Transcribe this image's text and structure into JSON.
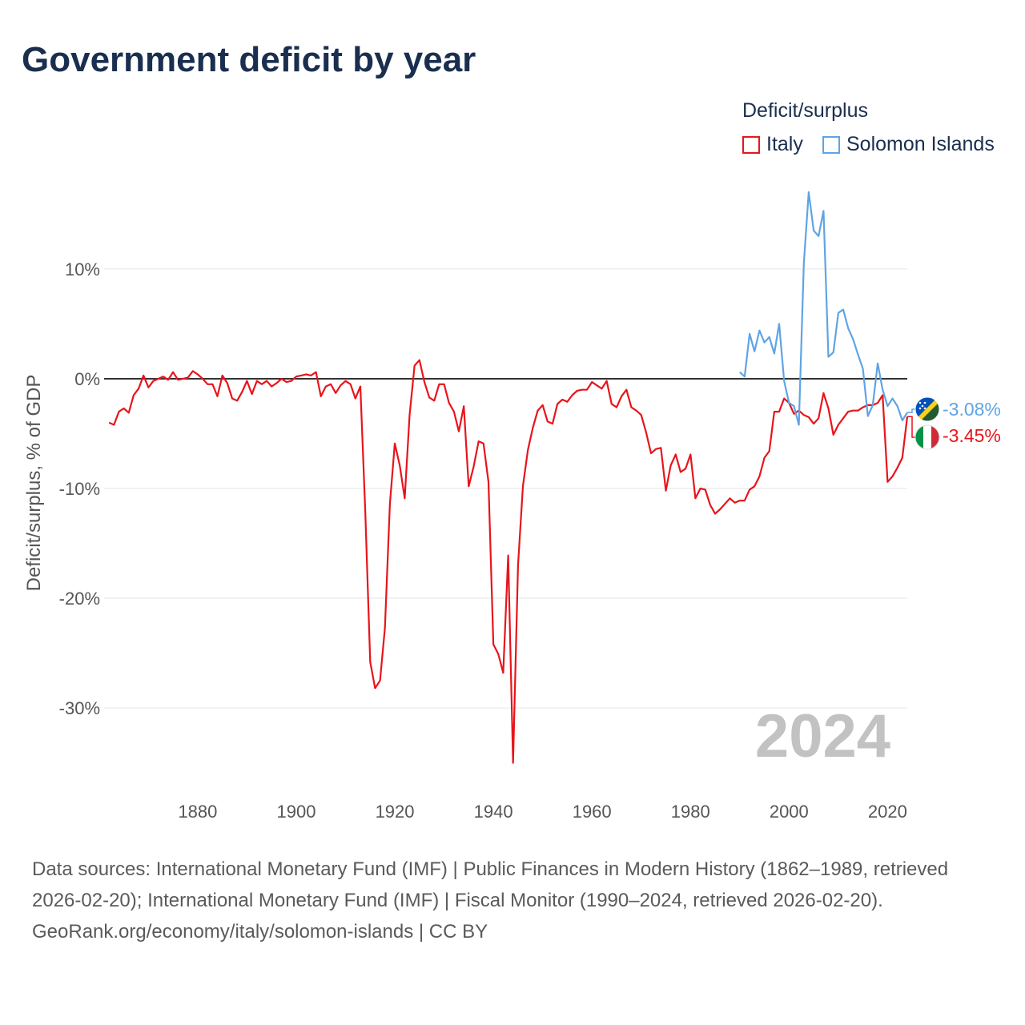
{
  "title": "Government deficit by year",
  "legend": {
    "title": "Deficit/surplus",
    "items": [
      {
        "label": "Italy",
        "color": "#e8141b"
      },
      {
        "label": "Solomon Islands",
        "color": "#5fa4e4"
      }
    ]
  },
  "year_watermark": "2024",
  "footer": {
    "sources": "Data sources: International Monetary Fund (IMF) | Public Finances in Modern History (1862–1989, retrieved 2026-02-20); International Monetary Fund (IMF) | Fiscal Monitor (1990–2024, retrieved 2026-02-20).",
    "credit": "GeoRank.org/economy/italy/solomon-islands | CC BY"
  },
  "chart_data": {
    "type": "line",
    "title": "Government deficit by year",
    "xlabel": "",
    "ylabel": "Deficit/surplus, % of GDP",
    "xlim": [
      1861,
      2024
    ],
    "ylim": [
      -37,
      17
    ],
    "x_ticks": [
      {
        "value": 1880,
        "label": "1880"
      },
      {
        "value": 1900,
        "label": "1900"
      },
      {
        "value": 1920,
        "label": "1920"
      },
      {
        "value": 1940,
        "label": "1940"
      },
      {
        "value": 1960,
        "label": "1960"
      },
      {
        "value": 1980,
        "label": "1980"
      },
      {
        "value": 2000,
        "label": "2000"
      },
      {
        "value": 2020,
        "label": "2020"
      }
    ],
    "y_ticks": [
      {
        "value": 10,
        "label": "10%"
      },
      {
        "value": 0,
        "label": "0%"
      },
      {
        "value": -10,
        "label": "-10%"
      },
      {
        "value": -20,
        "label": "-20%"
      },
      {
        "value": -30,
        "label": "-30%"
      }
    ],
    "series": [
      {
        "name": "Italy",
        "color": "#e8141b",
        "end_label": "-3.45%",
        "points": [
          [
            1862,
            -4.0
          ],
          [
            1863,
            -4.2
          ],
          [
            1864,
            -3.0
          ],
          [
            1865,
            -2.7
          ],
          [
            1866,
            -3.1
          ],
          [
            1867,
            -1.5
          ],
          [
            1868,
            -0.9
          ],
          [
            1869,
            0.3
          ],
          [
            1870,
            -0.8
          ],
          [
            1871,
            -0.2
          ],
          [
            1872,
            0.0
          ],
          [
            1873,
            0.2
          ],
          [
            1874,
            -0.1
          ],
          [
            1875,
            0.6
          ],
          [
            1876,
            -0.1
          ],
          [
            1877,
            0.0
          ],
          [
            1878,
            0.1
          ],
          [
            1879,
            0.7
          ],
          [
            1880,
            0.4
          ],
          [
            1881,
            0.0
          ],
          [
            1882,
            -0.5
          ],
          [
            1883,
            -0.5
          ],
          [
            1884,
            -1.6
          ],
          [
            1885,
            0.3
          ],
          [
            1886,
            -0.4
          ],
          [
            1887,
            -1.8
          ],
          [
            1888,
            -2.0
          ],
          [
            1889,
            -1.2
          ],
          [
            1890,
            -0.2
          ],
          [
            1891,
            -1.4
          ],
          [
            1892,
            -0.2
          ],
          [
            1893,
            -0.5
          ],
          [
            1894,
            -0.2
          ],
          [
            1895,
            -0.7
          ],
          [
            1896,
            -0.4
          ],
          [
            1897,
            0.0
          ],
          [
            1898,
            -0.3
          ],
          [
            1899,
            -0.2
          ],
          [
            1900,
            0.2
          ],
          [
            1901,
            0.3
          ],
          [
            1902,
            0.4
          ],
          [
            1903,
            0.3
          ],
          [
            1904,
            0.6
          ],
          [
            1905,
            -1.6
          ],
          [
            1906,
            -0.7
          ],
          [
            1907,
            -0.5
          ],
          [
            1908,
            -1.3
          ],
          [
            1909,
            -0.6
          ],
          [
            1910,
            -0.2
          ],
          [
            1911,
            -0.5
          ],
          [
            1912,
            -1.8
          ],
          [
            1913,
            -0.7
          ],
          [
            1914,
            -12.0
          ],
          [
            1915,
            -25.8
          ],
          [
            1916,
            -28.2
          ],
          [
            1917,
            -27.5
          ],
          [
            1918,
            -22.7
          ],
          [
            1919,
            -11.4
          ],
          [
            1920,
            -5.9
          ],
          [
            1921,
            -7.9
          ],
          [
            1922,
            -10.9
          ],
          [
            1923,
            -3.3
          ],
          [
            1924,
            1.2
          ],
          [
            1925,
            1.7
          ],
          [
            1926,
            -0.3
          ],
          [
            1927,
            -1.7
          ],
          [
            1928,
            -2.0
          ],
          [
            1929,
            -0.5
          ],
          [
            1930,
            -0.5
          ],
          [
            1931,
            -2.2
          ],
          [
            1932,
            -3.0
          ],
          [
            1933,
            -4.8
          ],
          [
            1934,
            -2.5
          ],
          [
            1935,
            -9.8
          ],
          [
            1936,
            -8.0
          ],
          [
            1937,
            -5.7
          ],
          [
            1938,
            -5.9
          ],
          [
            1939,
            -9.4
          ],
          [
            1940,
            -24.2
          ],
          [
            1941,
            -25.1
          ],
          [
            1942,
            -26.8
          ],
          [
            1943,
            -16.1
          ],
          [
            1944,
            -35.0
          ],
          [
            1945,
            -17.0
          ],
          [
            1946,
            -9.8
          ],
          [
            1947,
            -6.5
          ],
          [
            1948,
            -4.5
          ],
          [
            1949,
            -2.9
          ],
          [
            1950,
            -2.4
          ],
          [
            1951,
            -3.9
          ],
          [
            1952,
            -4.1
          ],
          [
            1953,
            -2.3
          ],
          [
            1954,
            -1.9
          ],
          [
            1955,
            -2.1
          ],
          [
            1956,
            -1.5
          ],
          [
            1957,
            -1.1
          ],
          [
            1958,
            -1.0
          ],
          [
            1959,
            -1.0
          ],
          [
            1960,
            -0.3
          ],
          [
            1961,
            -0.6
          ],
          [
            1962,
            -0.9
          ],
          [
            1963,
            -0.2
          ],
          [
            1964,
            -2.3
          ],
          [
            1965,
            -2.6
          ],
          [
            1966,
            -1.6
          ],
          [
            1967,
            -1.0
          ],
          [
            1968,
            -2.6
          ],
          [
            1969,
            -2.9
          ],
          [
            1970,
            -3.3
          ],
          [
            1971,
            -4.9
          ],
          [
            1972,
            -6.8
          ],
          [
            1973,
            -6.4
          ],
          [
            1974,
            -6.3
          ],
          [
            1975,
            -10.2
          ],
          [
            1976,
            -7.9
          ],
          [
            1977,
            -6.9
          ],
          [
            1978,
            -8.5
          ],
          [
            1979,
            -8.2
          ],
          [
            1980,
            -6.9
          ],
          [
            1981,
            -10.9
          ],
          [
            1982,
            -10.0
          ],
          [
            1983,
            -10.1
          ],
          [
            1984,
            -11.5
          ],
          [
            1985,
            -12.3
          ],
          [
            1986,
            -11.9
          ],
          [
            1987,
            -11.4
          ],
          [
            1988,
            -10.9
          ],
          [
            1989,
            -11.3
          ],
          [
            1990,
            -11.1
          ],
          [
            1991,
            -11.1
          ],
          [
            1992,
            -10.1
          ],
          [
            1993,
            -9.8
          ],
          [
            1994,
            -8.9
          ],
          [
            1995,
            -7.2
          ],
          [
            1996,
            -6.6
          ],
          [
            1997,
            -3.0
          ],
          [
            1998,
            -3.0
          ],
          [
            1999,
            -1.8
          ],
          [
            2000,
            -2.2
          ],
          [
            2001,
            -3.2
          ],
          [
            2002,
            -2.9
          ],
          [
            2003,
            -3.3
          ],
          [
            2004,
            -3.5
          ],
          [
            2005,
            -4.1
          ],
          [
            2006,
            -3.6
          ],
          [
            2007,
            -1.3
          ],
          [
            2008,
            -2.7
          ],
          [
            2009,
            -5.1
          ],
          [
            2010,
            -4.2
          ],
          [
            2011,
            -3.6
          ],
          [
            2012,
            -3.0
          ],
          [
            2013,
            -2.9
          ],
          [
            2014,
            -2.9
          ],
          [
            2015,
            -2.6
          ],
          [
            2016,
            -2.4
          ],
          [
            2017,
            -2.4
          ],
          [
            2018,
            -2.2
          ],
          [
            2019,
            -1.5
          ],
          [
            2020,
            -9.4
          ],
          [
            2021,
            -8.9
          ],
          [
            2022,
            -8.1
          ],
          [
            2023,
            -7.2
          ],
          [
            2024,
            -3.45
          ]
        ]
      },
      {
        "name": "Solomon Islands",
        "color": "#5fa4e4",
        "end_label": "-3.08%",
        "points": [
          [
            1990,
            0.6
          ],
          [
            1991,
            0.2
          ],
          [
            1992,
            4.1
          ],
          [
            1993,
            2.5
          ],
          [
            1994,
            4.4
          ],
          [
            1995,
            3.3
          ],
          [
            1996,
            3.8
          ],
          [
            1997,
            2.3
          ],
          [
            1998,
            5.0
          ],
          [
            1999,
            -0.2
          ],
          [
            2000,
            -2.2
          ],
          [
            2001,
            -2.5
          ],
          [
            2002,
            -4.2
          ],
          [
            2003,
            10.5
          ],
          [
            2004,
            17.0
          ],
          [
            2005,
            13.5
          ],
          [
            2006,
            13.0
          ],
          [
            2007,
            15.3
          ],
          [
            2008,
            2.0
          ],
          [
            2009,
            2.4
          ],
          [
            2010,
            6.0
          ],
          [
            2011,
            6.3
          ],
          [
            2012,
            4.6
          ],
          [
            2013,
            3.6
          ],
          [
            2014,
            2.2
          ],
          [
            2015,
            0.9
          ],
          [
            2016,
            -3.4
          ],
          [
            2017,
            -2.4
          ],
          [
            2018,
            1.4
          ],
          [
            2019,
            -1.0
          ],
          [
            2020,
            -2.5
          ],
          [
            2021,
            -1.8
          ],
          [
            2022,
            -2.5
          ],
          [
            2023,
            -3.8
          ],
          [
            2024,
            -3.08
          ]
        ]
      }
    ]
  }
}
